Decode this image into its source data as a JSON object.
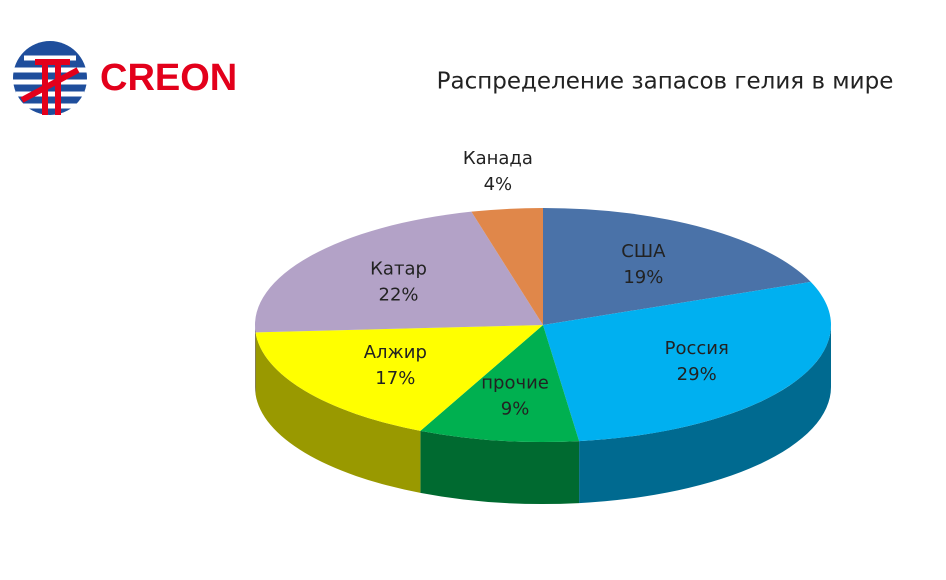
{
  "brand": "CREON",
  "chart_data": {
    "type": "pie",
    "title": "Распределение запасов гелия в мире",
    "categories": [
      "США",
      "Россия",
      "прочие",
      "Алжир",
      "Катар",
      "Канада"
    ],
    "values": [
      19,
      29,
      9,
      17,
      22,
      4
    ],
    "value_labels": [
      "19%",
      "29%",
      "9%",
      "17%",
      "22%",
      "4%"
    ],
    "colors": [
      "#4a72a8",
      "#00b0f0",
      "#00b050",
      "#ffff00",
      "#b3a2c7",
      "#e0874a"
    ]
  }
}
